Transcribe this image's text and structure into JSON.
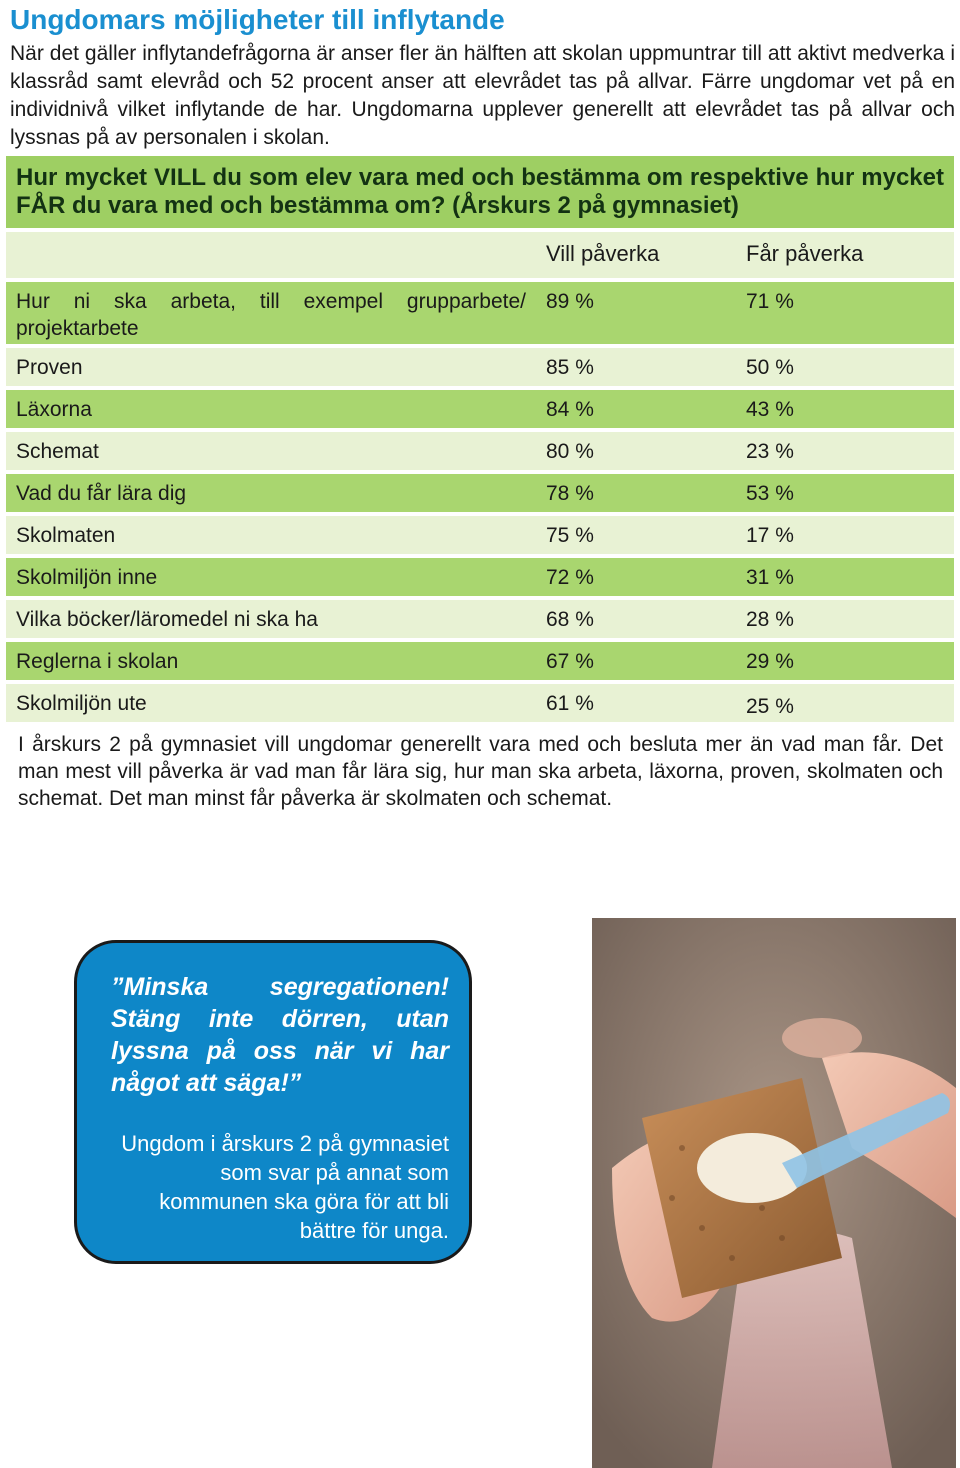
{
  "title": "Ungdomars möjligheter till inflytande",
  "intro": "När det gäller inflytandefrågorna är  anser fler än hälften att skolan uppmuntrar till att aktivt medverka i klassråd samt elevråd och 52 procent anser att elevrådet tas på allvar. Färre ungdomar vet på en individnivå vilket inflytande de har. Ungdomarna upplever generellt att elevrådet tas på allvar och lyssnas på av personalen i skolan.",
  "table": {
    "question": "Hur mycket VILL du som elev vara med och bestämma om respektive hur mycket FÅR du vara med och bestämma om? (Årskurs 2 på gymnasiet)",
    "headers": [
      "",
      "Vill påverka",
      "Får påverka"
    ],
    "rows": [
      {
        "label": "Hur ni ska arbeta, till exempel grupparbete/ projektarbete",
        "vill": "89 %",
        "far": "71 %"
      },
      {
        "label": "Proven",
        "vill": "85 %",
        "far": "50 %"
      },
      {
        "label": "Läxorna",
        "vill": "84 %",
        "far": "43 %"
      },
      {
        "label": "Schemat",
        "vill": "80 %",
        "far": "23 %"
      },
      {
        "label": "Vad du får lära dig",
        "vill": "78 %",
        "far": "53 %"
      },
      {
        "label": "Skolmaten",
        "vill": "75 %",
        "far": "17 %"
      },
      {
        "label": "Skolmiljön inne",
        "vill": "72 %",
        "far": "31 %"
      },
      {
        "label": "Vilka böcker/läromedel ni ska ha",
        "vill": "68 %",
        "far": "28 %"
      },
      {
        "label": "Reglerna i skolan",
        "vill": "67 %",
        "far": "29 %"
      },
      {
        "label": "Skolmiljön ute",
        "vill": "61 %",
        "far": "25 %"
      }
    ]
  },
  "summary": "I årskurs 2 på gymnasiet vill ungdomar generellt vara med och besluta mer än vad man får. Det man mest vill påverka är vad man får lära sig, hur man ska arbeta, läxorna, proven, skolmaten och schemat. Det man minst får påverka är skolmaten och schemat.",
  "quote": {
    "text": "”Minska segregationen! Stäng inte dörren, utan lyssna på oss när vi har något att säga!”",
    "source": "Ungdom i årskurs 2 på gymnasiet som svar på annat som kommunen ska göra för att bli bättre för unga."
  },
  "photo": {
    "icon": "photo-crispbread-hands"
  },
  "colors": {
    "title": "#1a8fd0",
    "header_green": "#9ecf63",
    "row_green": "#a9d66f",
    "row_light": "#e8f2d4",
    "quote_blue": "#0e87c8"
  }
}
